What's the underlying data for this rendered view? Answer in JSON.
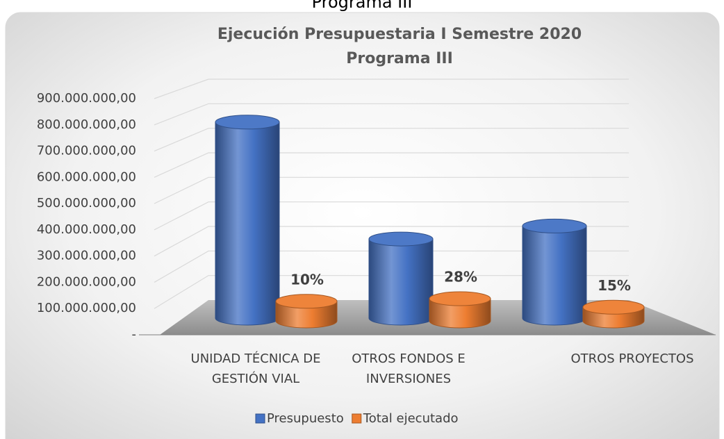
{
  "page_heading": "Programa III",
  "chart_data": {
    "type": "cylinder_bar",
    "title": "Ejecución Presupuestaria I Semestre 2020",
    "subtitle": "Programa III",
    "categories": [
      "UNIDAD TÉCNICA DE GESTIÓN VIAL",
      "OTROS FONDOS E INVERSIONES",
      "OTROS PROYECTOS"
    ],
    "series": [
      {
        "name": "Presupuesto",
        "color": "#4472c4",
        "values": [
          830000000,
          335000000,
          390000000
        ]
      },
      {
        "name": "Total ejecutado",
        "color": "#ed7d31",
        "values": [
          83000000,
          94000000,
          58000000
        ],
        "data_labels": [
          {
            "value": 10,
            "label": "10%"
          },
          {
            "value": 28,
            "label": "28%"
          },
          {
            "value": 15,
            "label": "15%"
          }
        ]
      }
    ],
    "ylim": [
      0,
      900000000
    ],
    "yticks": [
      {
        "value": 0,
        "label": "-"
      },
      {
        "value": 100000000,
        "label": "100.000.000,00"
      },
      {
        "value": 200000000,
        "label": "200.000.000,00"
      },
      {
        "value": 300000000,
        "label": "300.000.000,00"
      },
      {
        "value": 400000000,
        "label": "400.000.000,00"
      },
      {
        "value": 500000000,
        "label": "500.000.000,00"
      },
      {
        "value": 600000000,
        "label": "600.000.000,00"
      },
      {
        "value": 700000000,
        "label": "700.000.000,00"
      },
      {
        "value": 800000000,
        "label": "800.000.000,00"
      },
      {
        "value": 900000000,
        "label": "900.000.000,00"
      }
    ],
    "grid": true,
    "legend": "bottom"
  }
}
